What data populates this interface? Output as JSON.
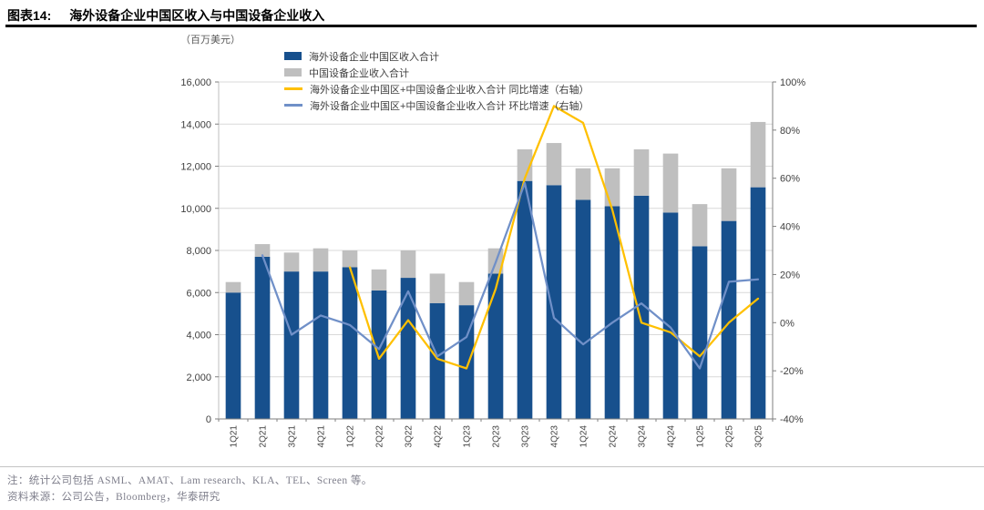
{
  "header": {
    "figure_label": "图表14:",
    "title": "海外设备企业中国区收入与中国设备企业收入"
  },
  "chart_data": {
    "type": "bar",
    "subtype": "stacked-bar-with-lines-combo",
    "unit_label": "（百万美元）",
    "grid": true,
    "legend_position": "top-left-vertical",
    "categories": [
      "1Q21",
      "2Q21",
      "3Q21",
      "4Q21",
      "1Q22",
      "2Q22",
      "3Q22",
      "4Q22",
      "1Q23",
      "2Q23",
      "3Q23",
      "4Q23",
      "1Q24",
      "2Q24",
      "3Q24",
      "4Q24",
      "1Q25",
      "2Q25",
      "3Q25"
    ],
    "series": [
      {
        "name": "海外设备企业中国区收入合计",
        "type": "bar",
        "stack": true,
        "color": "#17508D",
        "values": [
          6000,
          7700,
          7000,
          7000,
          7200,
          6100,
          6700,
          5500,
          5400,
          6900,
          11300,
          11100,
          10400,
          10100,
          10600,
          9800,
          8200,
          9400,
          11000
        ]
      },
      {
        "name": "中国设备企业收入合计",
        "type": "bar",
        "stack": true,
        "color": "#BFBFBF",
        "values": [
          500,
          600,
          900,
          1100,
          800,
          1000,
          1300,
          1400,
          1100,
          1200,
          1500,
          2000,
          1500,
          1800,
          2200,
          2800,
          2000,
          2500,
          3100
        ]
      },
      {
        "name": "海外设备企业中国区+中国设备企业收入合计 同比增速（右轴）",
        "type": "line",
        "axis": "right",
        "color": "#FFC000",
        "values": [
          null,
          null,
          null,
          null,
          23,
          -15,
          1,
          -15,
          -19,
          14,
          60,
          90,
          83,
          47,
          0,
          -4,
          -14,
          0,
          10
        ]
      },
      {
        "name": "海外设备企业中国区+中国设备企业收入合计 环比增速（右轴）",
        "type": "line",
        "axis": "right",
        "color": "#7090C8",
        "values": [
          null,
          28,
          -5,
          3,
          -1,
          -11,
          13,
          -14,
          -6,
          25,
          58,
          2,
          -9,
          0,
          8,
          -2,
          -19,
          17,
          18
        ]
      }
    ],
    "left_axis": {
      "min": 0,
      "max": 16000,
      "step": 2000,
      "tick_labels": [
        "0",
        "2,000",
        "4,000",
        "6,000",
        "8,000",
        "10,000",
        "12,000",
        "14,000",
        "16,000"
      ]
    },
    "right_axis": {
      "min": -40,
      "max": 100,
      "step": 20,
      "tick_labels": [
        "-40%",
        "-20%",
        "0%",
        "20%",
        "40%",
        "60%",
        "80%",
        "100%"
      ]
    }
  },
  "footer": {
    "note": "注：统计公司包括 ASML、AMAT、Lam research、KLA、TEL、Screen 等。",
    "source": "资料来源：公司公告，Bloomberg，华泰研究"
  }
}
